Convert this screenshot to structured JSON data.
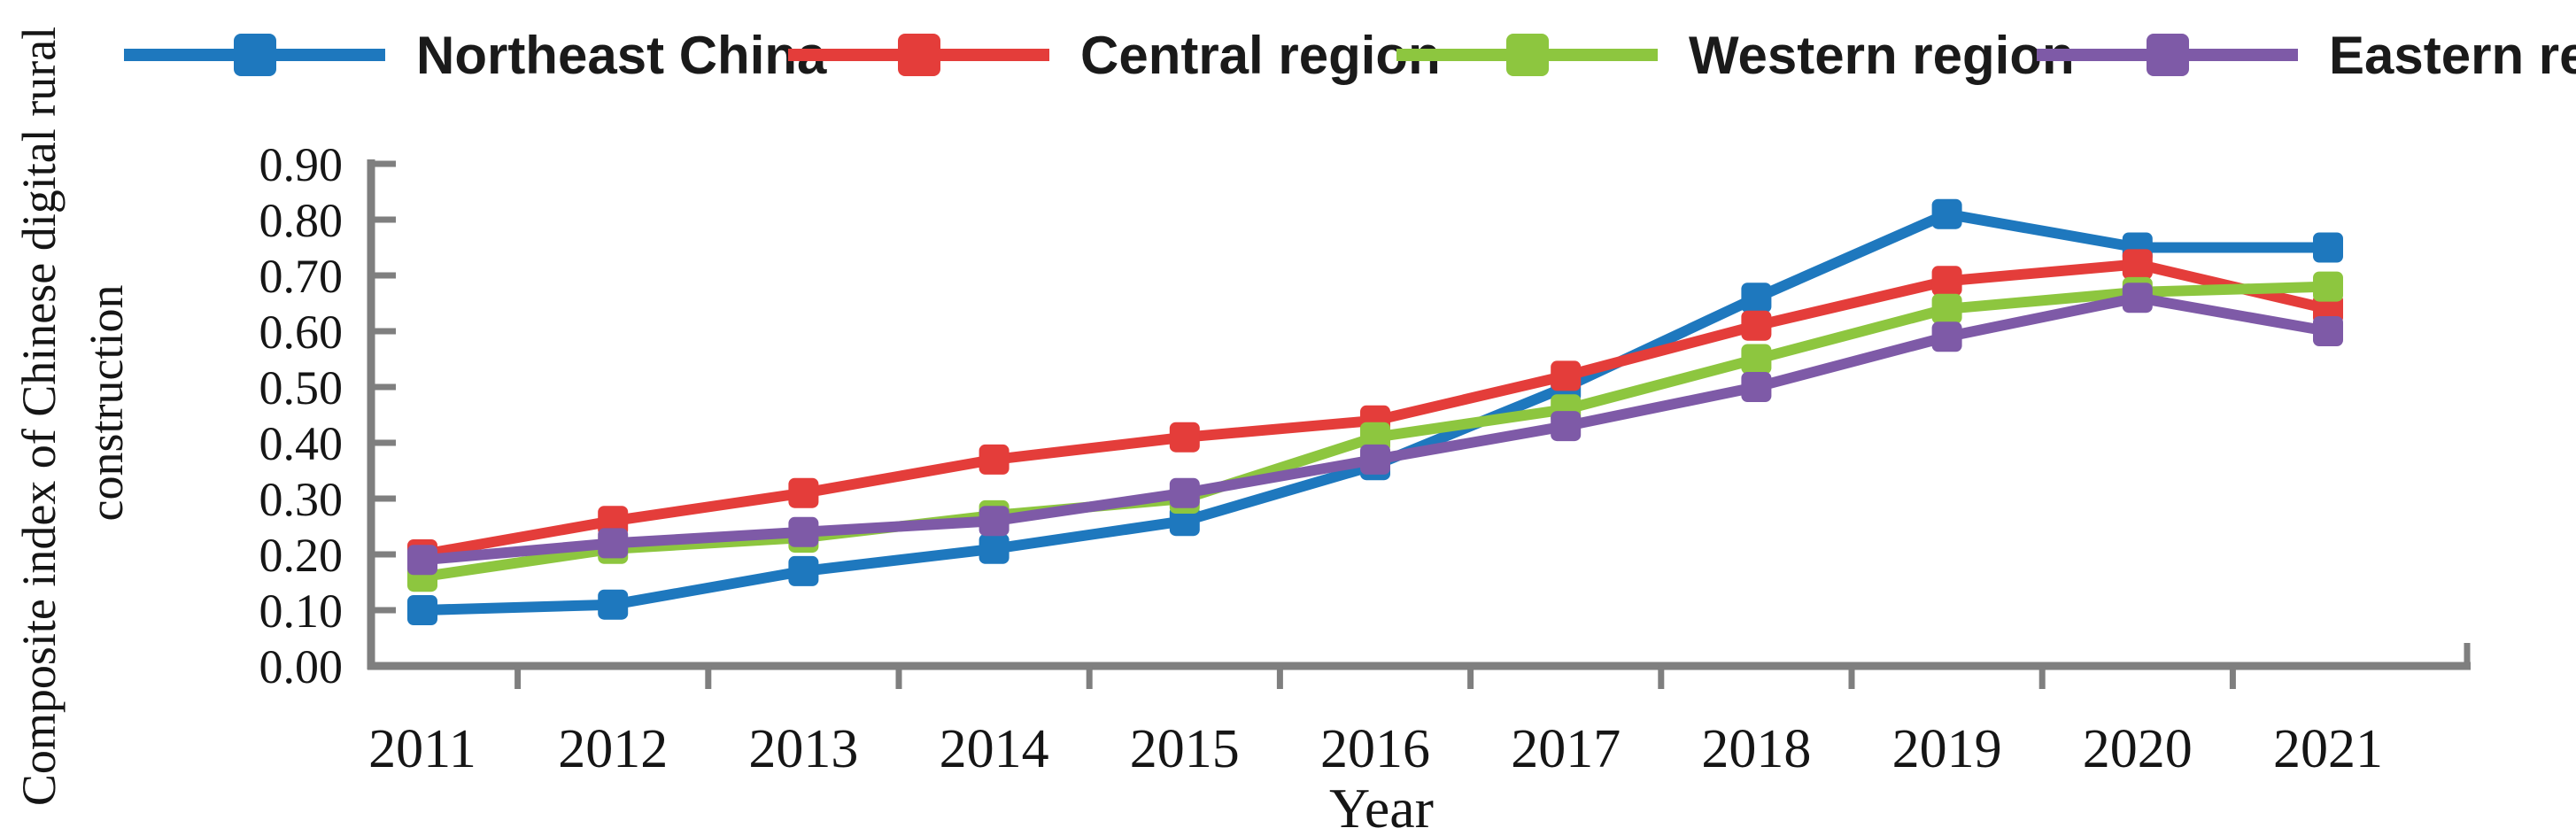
{
  "style": {
    "axis_color": "#7f7f7f",
    "text_color": "#151515",
    "legend_text_color": "#1a1a1a",
    "background": "#ffffff"
  },
  "chart_data": {
    "type": "line",
    "title": "",
    "xlabel": "Year",
    "ylabel": "Composite index of Chinese digital rural construction",
    "ylabel_lines": [
      "Composite index of Chinese digital rural",
      "construction"
    ],
    "x": [
      "2011",
      "2012",
      "2013",
      "2014",
      "2015",
      "2016",
      "2017",
      "2018",
      "2019",
      "2020",
      "2021"
    ],
    "ylim": [
      0.0,
      0.9
    ],
    "ytick_step": 0.1,
    "ytick_labels": [
      "0.00",
      "0.10",
      "0.20",
      "0.30",
      "0.40",
      "0.50",
      "0.60",
      "0.70",
      "0.80",
      "0.90"
    ],
    "grid": false,
    "marker": "square",
    "legend_position": "top",
    "series": [
      {
        "name": "Northeast China",
        "color": "#1E78BE",
        "values": [
          0.1,
          0.11,
          0.17,
          0.21,
          0.26,
          0.36,
          0.5,
          0.66,
          0.81,
          0.75,
          0.75
        ]
      },
      {
        "name": "Central region",
        "color": "#E43D3A",
        "values": [
          0.2,
          0.26,
          0.31,
          0.37,
          0.41,
          0.44,
          0.52,
          0.61,
          0.69,
          0.72,
          0.64
        ]
      },
      {
        "name": "Western region",
        "color": "#8DC63F",
        "values": [
          0.16,
          0.21,
          0.23,
          0.27,
          0.3,
          0.41,
          0.46,
          0.55,
          0.64,
          0.67,
          0.68
        ]
      },
      {
        "name": "Eastern region",
        "color": "#7E5AA7",
        "values": [
          0.19,
          0.22,
          0.24,
          0.26,
          0.31,
          0.37,
          0.43,
          0.5,
          0.59,
          0.66,
          0.6
        ]
      }
    ]
  }
}
